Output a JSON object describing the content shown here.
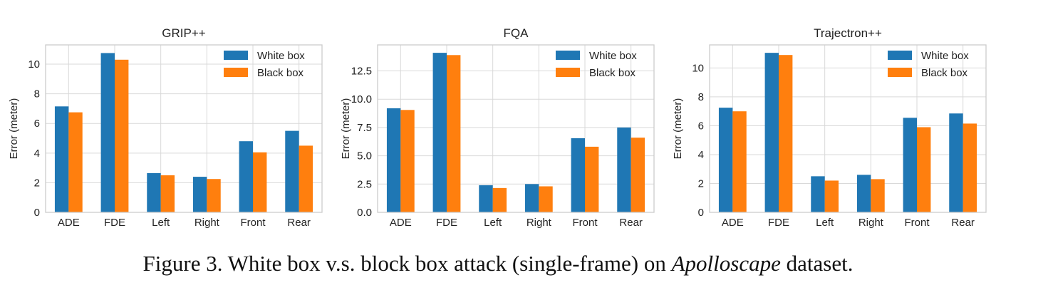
{
  "chart_data": [
    {
      "type": "bar",
      "title": "GRIP++",
      "xlabel": "",
      "ylabel": "Error (meter)",
      "categories": [
        "ADE",
        "FDE",
        "Left",
        "Right",
        "Front",
        "Rear"
      ],
      "series": [
        {
          "name": "White box",
          "values": [
            7.15,
            10.75,
            2.65,
            2.4,
            4.8,
            5.5
          ]
        },
        {
          "name": "Black box",
          "values": [
            6.75,
            10.3,
            2.5,
            2.25,
            4.05,
            4.5
          ]
        }
      ],
      "ylim": [
        0,
        11.3
      ],
      "yticks": [
        0,
        2,
        4,
        6,
        8,
        10
      ],
      "yticklabels": [
        "0",
        "2",
        "4",
        "6",
        "8",
        "10"
      ],
      "grid": true,
      "legend": "top-right"
    },
    {
      "type": "bar",
      "title": "FQA",
      "xlabel": "",
      "ylabel": "Error (meter)",
      "categories": [
        "ADE",
        "FDE",
        "Left",
        "Right",
        "Front",
        "Rear"
      ],
      "series": [
        {
          "name": "White box",
          "values": [
            9.2,
            14.1,
            2.4,
            2.5,
            6.55,
            7.5
          ]
        },
        {
          "name": "Black box",
          "values": [
            9.05,
            13.9,
            2.15,
            2.3,
            5.8,
            6.6
          ]
        }
      ],
      "ylim": [
        0,
        14.8
      ],
      "yticks": [
        0,
        2.5,
        5,
        7.5,
        10,
        12.5
      ],
      "yticklabels": [
        "0.0",
        "2.5",
        "5.0",
        "7.5",
        "10.0",
        "12.5"
      ],
      "grid": true,
      "legend": "top-right"
    },
    {
      "type": "bar",
      "title": "Trajectron++",
      "xlabel": "",
      "ylabel": "Error (meter)",
      "categories": [
        "ADE",
        "FDE",
        "Left",
        "Right",
        "Front",
        "Rear"
      ],
      "series": [
        {
          "name": "White box",
          "values": [
            7.25,
            11.05,
            2.5,
            2.6,
            6.55,
            6.85
          ]
        },
        {
          "name": "Black box",
          "values": [
            7.0,
            10.9,
            2.2,
            2.3,
            5.9,
            6.15
          ]
        }
      ],
      "ylim": [
        0,
        11.6
      ],
      "yticks": [
        0,
        2,
        4,
        6,
        8,
        10
      ],
      "yticklabels": [
        "0",
        "2",
        "4",
        "6",
        "8",
        "10"
      ],
      "grid": true,
      "legend": "top-right"
    }
  ],
  "colors": {
    "white_box": "#1f77b4",
    "black_box": "#ff7f0e",
    "grid": "#d9d9d9",
    "frame": "#cccccc"
  },
  "caption": {
    "prefix": "Figure 3. White box v.s. block box attack (single-frame) on ",
    "emphasis": "Apolloscape",
    "suffix": " dataset."
  }
}
